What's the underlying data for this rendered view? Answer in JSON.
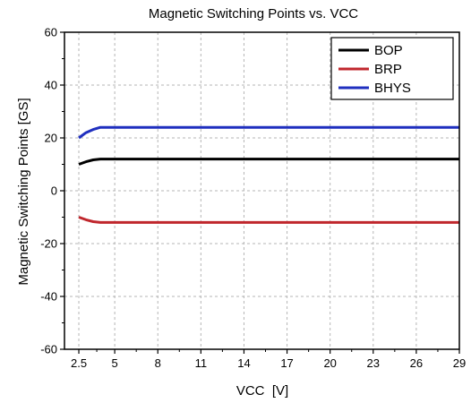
{
  "chart_data": {
    "type": "line",
    "title": "Magnetic Switching Points vs. VCC",
    "xlabel": "VCC  [V]",
    "ylabel": "Magnetic Switching Points [GS]",
    "xlim": [
      1.5,
      29
    ],
    "ylim": [
      -60,
      60
    ],
    "x_ticks": [
      2.5,
      5,
      8,
      11,
      14,
      17,
      20,
      23,
      26,
      29
    ],
    "x_tick_labels": [
      "2.5",
      "5",
      "8",
      "11",
      "14",
      "17",
      "20",
      "23",
      "26",
      "29"
    ],
    "y_ticks": [
      -60,
      -40,
      -20,
      0,
      20,
      40,
      60
    ],
    "y_tick_labels": [
      "-60",
      "-40",
      "-20",
      "0",
      "20",
      "40",
      "60"
    ],
    "grid": true,
    "legend_position": "top-right",
    "series": [
      {
        "name": "BOP",
        "color": "#000000",
        "x": [
          2.5,
          3.0,
          3.5,
          4.0,
          5,
          8,
          11,
          14,
          17,
          20,
          23,
          26,
          29
        ],
        "y": [
          10,
          11,
          11.7,
          12,
          12,
          12,
          12,
          12,
          12,
          12,
          12,
          12,
          12
        ]
      },
      {
        "name": "BRP",
        "color": "#c0272d",
        "x": [
          2.5,
          3.0,
          3.5,
          4.0,
          5,
          8,
          11,
          14,
          17,
          20,
          23,
          26,
          29
        ],
        "y": [
          -10,
          -11,
          -11.7,
          -12,
          -12,
          -12,
          -12,
          -12,
          -12,
          -12,
          -12,
          -12,
          -12
        ]
      },
      {
        "name": "BHYS",
        "color": "#1f2fbf",
        "x": [
          2.5,
          3.0,
          3.5,
          4.0,
          5,
          8,
          11,
          14,
          17,
          20,
          23,
          26,
          29
        ],
        "y": [
          20,
          22,
          23.2,
          24,
          24,
          24,
          24,
          24,
          24,
          24,
          24,
          24,
          24
        ]
      }
    ]
  }
}
